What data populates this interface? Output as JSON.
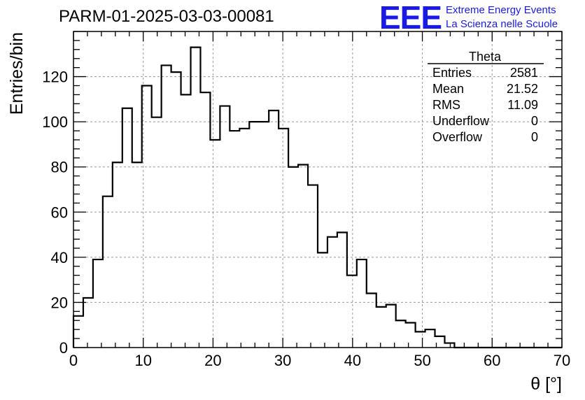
{
  "chart_data": {
    "type": "histogram",
    "title": "PARM-01-2025-03-03-00081",
    "xlabel": "θ [°]",
    "ylabel": "Entries/bin",
    "xlim": [
      0,
      70
    ],
    "ylim": [
      0,
      140
    ],
    "bin_width": 1.4,
    "x_ticks": [
      0,
      10,
      20,
      30,
      40,
      50,
      60,
      70
    ],
    "y_ticks": [
      0,
      20,
      40,
      60,
      80,
      100,
      120
    ],
    "grid": true,
    "values": [
      14,
      22,
      39,
      67,
      82,
      106,
      82,
      116,
      102,
      125,
      122,
      112,
      133,
      113,
      92,
      107,
      96,
      97,
      100,
      100,
      105,
      97,
      80,
      81,
      72,
      42,
      49,
      51,
      32,
      39,
      24,
      18,
      19,
      12,
      11,
      7,
      8,
      5,
      2,
      0,
      0,
      0,
      0,
      0,
      0,
      0,
      0,
      0,
      0,
      0
    ],
    "stats": {
      "name": "Theta",
      "rows": [
        {
          "label": "Entries",
          "value": "2581"
        },
        {
          "label": "Mean",
          "value": "21.52"
        },
        {
          "label": "RMS",
          "value": "11.09"
        },
        {
          "label": "Underflow",
          "value": "0"
        },
        {
          "label": "Overflow",
          "value": "0"
        }
      ]
    }
  },
  "logo": {
    "mark": "EEE",
    "line1": "Extreme Energy Events",
    "line2": "La Scienza nelle Scuole",
    "color": "#1a1ae6"
  }
}
